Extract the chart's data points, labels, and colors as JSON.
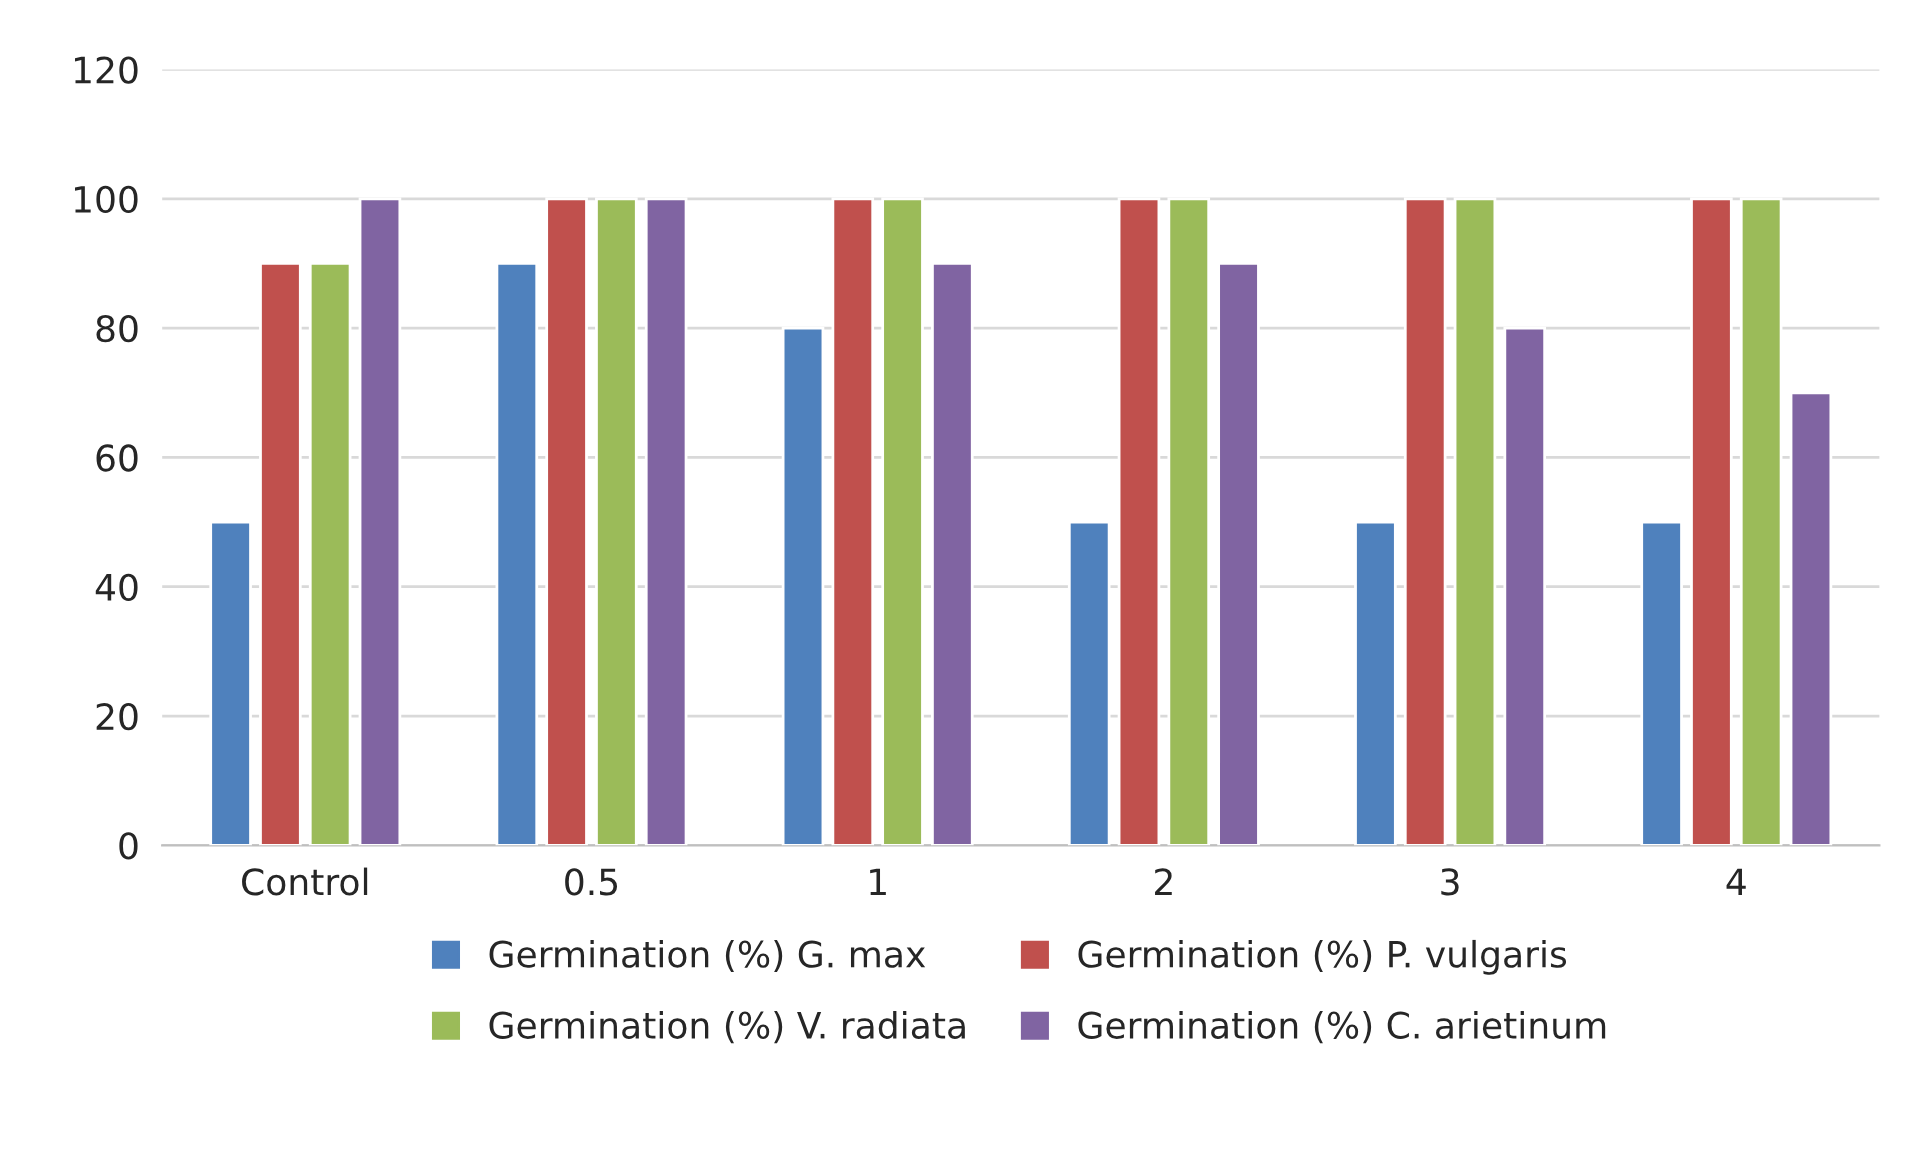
{
  "chart_data": {
    "type": "bar",
    "categories": [
      "Control",
      "0.5",
      "1",
      "2",
      "3",
      "4"
    ],
    "series": [
      {
        "name": "Germination (%) G. max",
        "color": "#4f81bd",
        "values": [
          50,
          90,
          80,
          50,
          50,
          50
        ]
      },
      {
        "name": "Germination (%) P. vulgaris",
        "color": "#c0504d",
        "values": [
          90,
          100,
          100,
          100,
          100,
          100
        ]
      },
      {
        "name": "Germination (%) V. radiata",
        "color": "#9bbb59",
        "values": [
          90,
          100,
          100,
          100,
          100,
          100
        ]
      },
      {
        "name": "Germination (%) C. arietinum",
        "color": "#8064a2",
        "values": [
          100,
          100,
          90,
          90,
          80,
          70
        ]
      }
    ],
    "ylim": [
      0,
      120
    ],
    "yticks": [
      0,
      20,
      40,
      60,
      80,
      100,
      120
    ],
    "grid": "y",
    "legend": "bottom"
  }
}
